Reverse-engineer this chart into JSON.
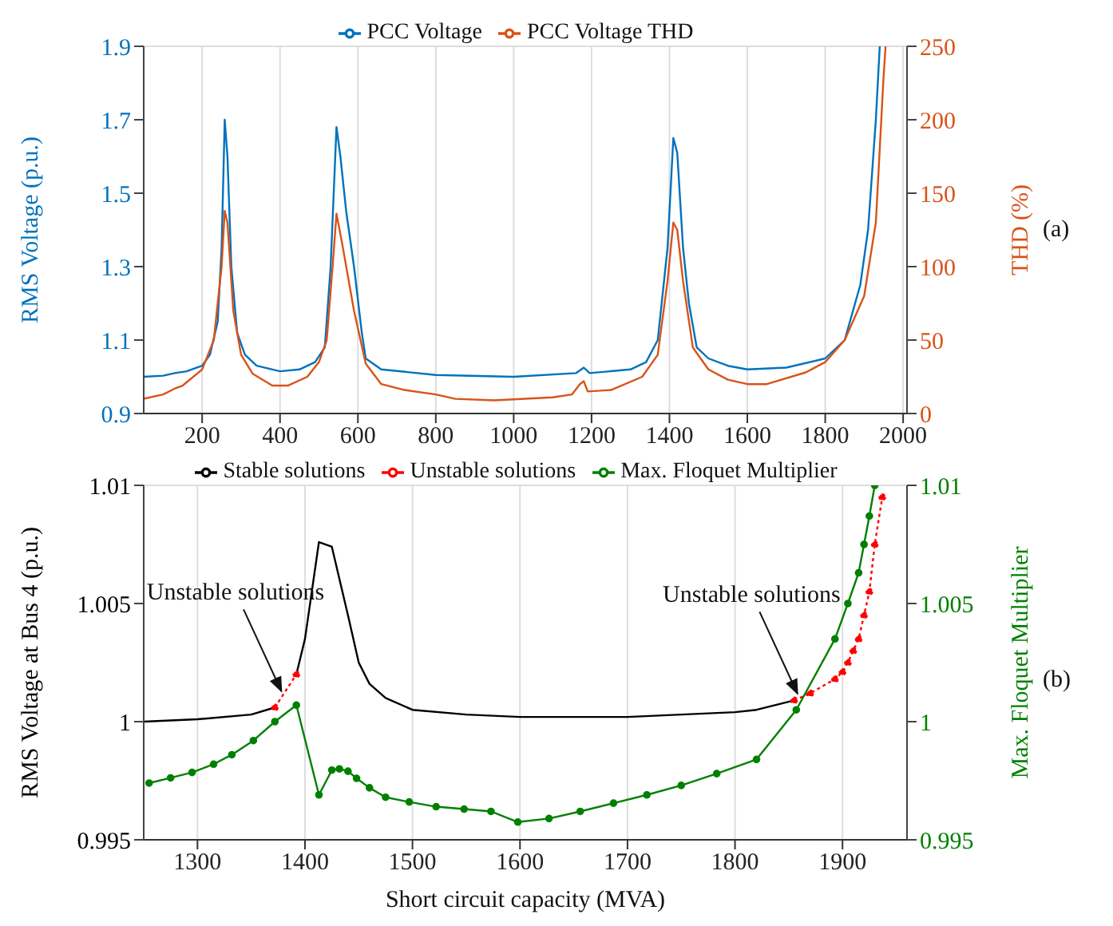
{
  "chart_data": [
    {
      "type": "line",
      "ylabel": "RMS Voltage (p.u.)",
      "y2label": "THD (%)",
      "xlim": [
        50,
        2010
      ],
      "xticks": [
        200,
        400,
        600,
        800,
        1000,
        1200,
        1400,
        1600,
        1800,
        2000
      ],
      "ylim": [
        0.9,
        1.9
      ],
      "yticks": [
        0.9,
        1.1,
        1.3,
        1.5,
        1.7,
        1.9
      ],
      "y2lim": [
        0,
        250
      ],
      "y2ticks": [
        0,
        50,
        100,
        150,
        200,
        250
      ],
      "grid": true,
      "legend": "top",
      "annotations": [
        "(a)"
      ],
      "series": [
        {
          "name": "PCC Voltage",
          "color": "#0072bd",
          "x": [
            50,
            100,
            130,
            160,
            200,
            220,
            240,
            250,
            258,
            265,
            275,
            290,
            310,
            340,
            400,
            450,
            490,
            515,
            530,
            545,
            555,
            570,
            590,
            610,
            620,
            660,
            800,
            1000,
            1160,
            1180,
            1195,
            1300,
            1340,
            1370,
            1395,
            1410,
            1420,
            1435,
            1450,
            1470,
            1500,
            1550,
            1600,
            1700,
            1800,
            1850,
            1890,
            1910,
            1930,
            1940
          ],
          "values": [
            1.0,
            1.003,
            1.01,
            1.015,
            1.03,
            1.06,
            1.15,
            1.35,
            1.7,
            1.6,
            1.3,
            1.12,
            1.06,
            1.03,
            1.015,
            1.02,
            1.04,
            1.08,
            1.3,
            1.68,
            1.6,
            1.45,
            1.3,
            1.12,
            1.05,
            1.02,
            1.005,
            1.0,
            1.01,
            1.025,
            1.01,
            1.02,
            1.04,
            1.1,
            1.35,
            1.65,
            1.61,
            1.35,
            1.2,
            1.08,
            1.05,
            1.03,
            1.02,
            1.025,
            1.05,
            1.1,
            1.25,
            1.4,
            1.7,
            1.9
          ]
        },
        {
          "name": "PCC Voltage THD",
          "color": "#d95319",
          "axis": "y2",
          "x": [
            50,
            100,
            130,
            150,
            200,
            230,
            250,
            258,
            265,
            280,
            300,
            330,
            380,
            420,
            470,
            500,
            520,
            535,
            545,
            560,
            590,
            620,
            660,
            720,
            800,
            850,
            950,
            1100,
            1150,
            1170,
            1180,
            1190,
            1250,
            1330,
            1370,
            1395,
            1410,
            1420,
            1435,
            1460,
            1500,
            1550,
            1600,
            1650,
            1750,
            1800,
            1850,
            1900,
            1930,
            1950,
            1955
          ],
          "values": [
            10,
            13,
            17,
            19,
            30,
            50,
            100,
            138,
            130,
            70,
            40,
            27,
            19,
            19,
            25,
            35,
            50,
            100,
            136,
            115,
            70,
            34,
            20,
            16,
            13,
            10,
            9,
            11,
            13,
            20,
            22,
            15,
            16,
            25,
            40,
            90,
            130,
            125,
            90,
            45,
            30,
            23,
            20,
            20,
            28,
            35,
            50,
            80,
            130,
            230,
            250
          ]
        }
      ]
    },
    {
      "type": "line",
      "xlabel": "Short circuit capacity (MVA)",
      "ylabel": "RMS Voltage at Bus 4 (p.u.)",
      "y2label": "Max. Floquet Multiplier",
      "xlim": [
        1250,
        1960
      ],
      "xticks": [
        1300,
        1400,
        1500,
        1600,
        1700,
        1800,
        1900
      ],
      "ylim": [
        0.995,
        1.01
      ],
      "yticks": [
        0.995,
        1,
        1.005,
        1.01
      ],
      "y2lim": [
        0.995,
        1.01
      ],
      "y2ticks": [
        0.995,
        1,
        1.005,
        1.01
      ],
      "grid": true,
      "legend": "top",
      "annotations": [
        {
          "text": "Unstable solutions",
          "x": 1380,
          "y": 1.0011
        },
        {
          "text": "Unstable solutions",
          "x": 1860,
          "y": 1.001
        },
        "(b)"
      ],
      "series": [
        {
          "name": "Stable solutions",
          "color": "#000000",
          "marker": "none",
          "line_style": "solid",
          "x": [
            1250,
            1300,
            1350,
            1372,
            1380,
            1392,
            1400,
            1413,
            1425,
            1440,
            1450,
            1460,
            1475,
            1500,
            1550,
            1600,
            1700,
            1800,
            1820,
            1855
          ],
          "values": [
            1.0,
            1.0001,
            1.0003,
            1.0006,
            null,
            1.002,
            1.0035,
            1.0076,
            1.0074,
            1.0045,
            1.0025,
            1.0016,
            1.001,
            1.0005,
            1.0003,
            1.0002,
            1.0002,
            1.0004,
            1.0005,
            1.0009
          ]
        },
        {
          "name": "Unstable solutions",
          "color": "#ff0000",
          "marker": "circle",
          "line_style": "dotted",
          "x": [
            1372,
            1392,
            1600,
            1855,
            1870,
            1893,
            1900,
            1905,
            1910,
            1915,
            1920,
            1925,
            1930,
            1937
          ],
          "values": [
            1.0006,
            1.002,
            null,
            1.0009,
            1.0012,
            1.0018,
            1.0021,
            1.0025,
            1.003,
            1.0035,
            1.0045,
            1.0055,
            1.0075,
            1.0095
          ]
        },
        {
          "name": "Max. Floquet Multiplier",
          "color": "#008000",
          "axis": "y2",
          "marker": "circle",
          "line_style": "solid",
          "x": [
            1255,
            1275,
            1295,
            1315,
            1332,
            1352,
            1372,
            1392,
            1413,
            1425,
            1432,
            1440,
            1448,
            1460,
            1475,
            1497,
            1522,
            1548,
            1573,
            1598,
            1627,
            1656,
            1687,
            1718,
            1750,
            1783,
            1820,
            1857,
            1893,
            1905,
            1915,
            1920,
            1925,
            1930
          ],
          "values": [
            0.9974,
            0.99762,
            0.99785,
            0.9982,
            0.9986,
            0.9992,
            1.0,
            1.0007,
            0.9969,
            0.99795,
            0.998,
            0.9979,
            0.9976,
            0.9972,
            0.9968,
            0.9966,
            0.9964,
            0.9963,
            0.9962,
            0.99575,
            0.9959,
            0.9962,
            0.99655,
            0.9969,
            0.9973,
            0.9978,
            0.9984,
            1.0005,
            1.0035,
            1.005,
            1.0063,
            1.0075,
            1.0087,
            1.01
          ]
        }
      ]
    }
  ]
}
